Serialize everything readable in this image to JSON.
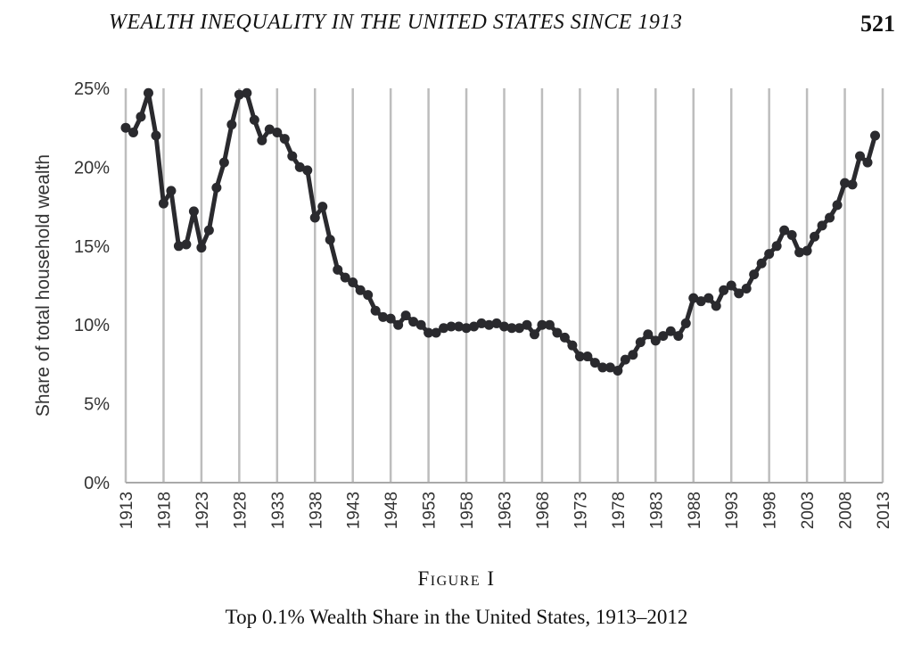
{
  "header": {
    "running_title": "WEALTH INEQUALITY IN THE UNITED STATES SINCE 1913",
    "page_number": "521"
  },
  "figure": {
    "label": "Figure I",
    "caption": "Top 0.1% Wealth Share in the United States, 1913–2012"
  },
  "chart_data": {
    "type": "line",
    "title": "",
    "xlabel": "",
    "ylabel": "Share of total household wealth",
    "xlim": [
      1913,
      2013
    ],
    "ylim": [
      0,
      25
    ],
    "y_ticks": [
      "0%",
      "5%",
      "10%",
      "15%",
      "20%",
      "25%"
    ],
    "y_tick_values": [
      0,
      5,
      10,
      15,
      20,
      25
    ],
    "x_ticks": [
      "1913",
      "1918",
      "1923",
      "1928",
      "1933",
      "1938",
      "1943",
      "1948",
      "1953",
      "1958",
      "1963",
      "1968",
      "1973",
      "1978",
      "1983",
      "1988",
      "1993",
      "1998",
      "2003",
      "2008",
      "2013"
    ],
    "x_tick_values": [
      1913,
      1918,
      1923,
      1928,
      1933,
      1938,
      1943,
      1948,
      1953,
      1958,
      1963,
      1968,
      1973,
      1978,
      1983,
      1988,
      1993,
      1998,
      2003,
      2008,
      2013
    ],
    "vertical_gridlines": true,
    "legend": "none",
    "color": "#2a2a2e",
    "series": [
      {
        "x": [
          1913,
          1914,
          1915,
          1916,
          1917,
          1918,
          1919,
          1920,
          1921,
          1922,
          1923,
          1924,
          1925,
          1926,
          1927,
          1928,
          1929,
          1930,
          1931,
          1932,
          1933,
          1934,
          1935,
          1936,
          1937,
          1938,
          1939,
          1940,
          1941,
          1942,
          1943,
          1944,
          1945,
          1946,
          1947,
          1948,
          1949,
          1950,
          1951,
          1952,
          1953,
          1954,
          1955,
          1956,
          1957,
          1958,
          1959,
          1960,
          1961,
          1962,
          1963,
          1964,
          1965,
          1966,
          1967,
          1968,
          1969,
          1970,
          1971,
          1972,
          1973,
          1974,
          1975,
          1976,
          1977,
          1978,
          1979,
          1980,
          1981,
          1982,
          1983,
          1984,
          1985,
          1986,
          1987,
          1988,
          1989,
          1990,
          1991,
          1992,
          1993,
          1994,
          1995,
          1996,
          1997,
          1998,
          1999,
          2000,
          2001,
          2002,
          2003,
          2004,
          2005,
          2006,
          2007,
          2008,
          2009,
          2010,
          2011,
          2012
        ],
        "values": [
          22.5,
          22.2,
          23.2,
          24.7,
          22.0,
          17.7,
          18.5,
          15.0,
          15.1,
          17.2,
          14.9,
          16.0,
          18.7,
          20.3,
          22.7,
          24.6,
          24.7,
          23.0,
          21.7,
          22.4,
          22.2,
          21.8,
          20.7,
          20.0,
          19.8,
          16.8,
          17.5,
          15.4,
          13.5,
          13.0,
          12.7,
          12.2,
          11.9,
          10.9,
          10.5,
          10.4,
          10.0,
          10.6,
          10.2,
          10.0,
          9.5,
          9.5,
          9.8,
          9.9,
          9.9,
          9.8,
          9.9,
          10.1,
          10.0,
          10.1,
          9.9,
          9.8,
          9.8,
          10.0,
          9.4,
          10.0,
          10.0,
          9.5,
          9.2,
          8.7,
          8.0,
          8.0,
          7.6,
          7.3,
          7.3,
          7.1,
          7.8,
          8.1,
          8.9,
          9.4,
          9.0,
          9.3,
          9.6,
          9.3,
          10.1,
          11.7,
          11.5,
          11.7,
          11.2,
          12.2,
          12.5,
          12.0,
          12.3,
          13.2,
          13.9,
          14.5,
          15.0,
          16.0,
          15.7,
          14.6,
          14.7,
          15.6,
          16.3,
          16.8,
          17.6,
          19.0,
          18.9,
          20.7,
          20.3,
          22.0
        ]
      }
    ]
  }
}
